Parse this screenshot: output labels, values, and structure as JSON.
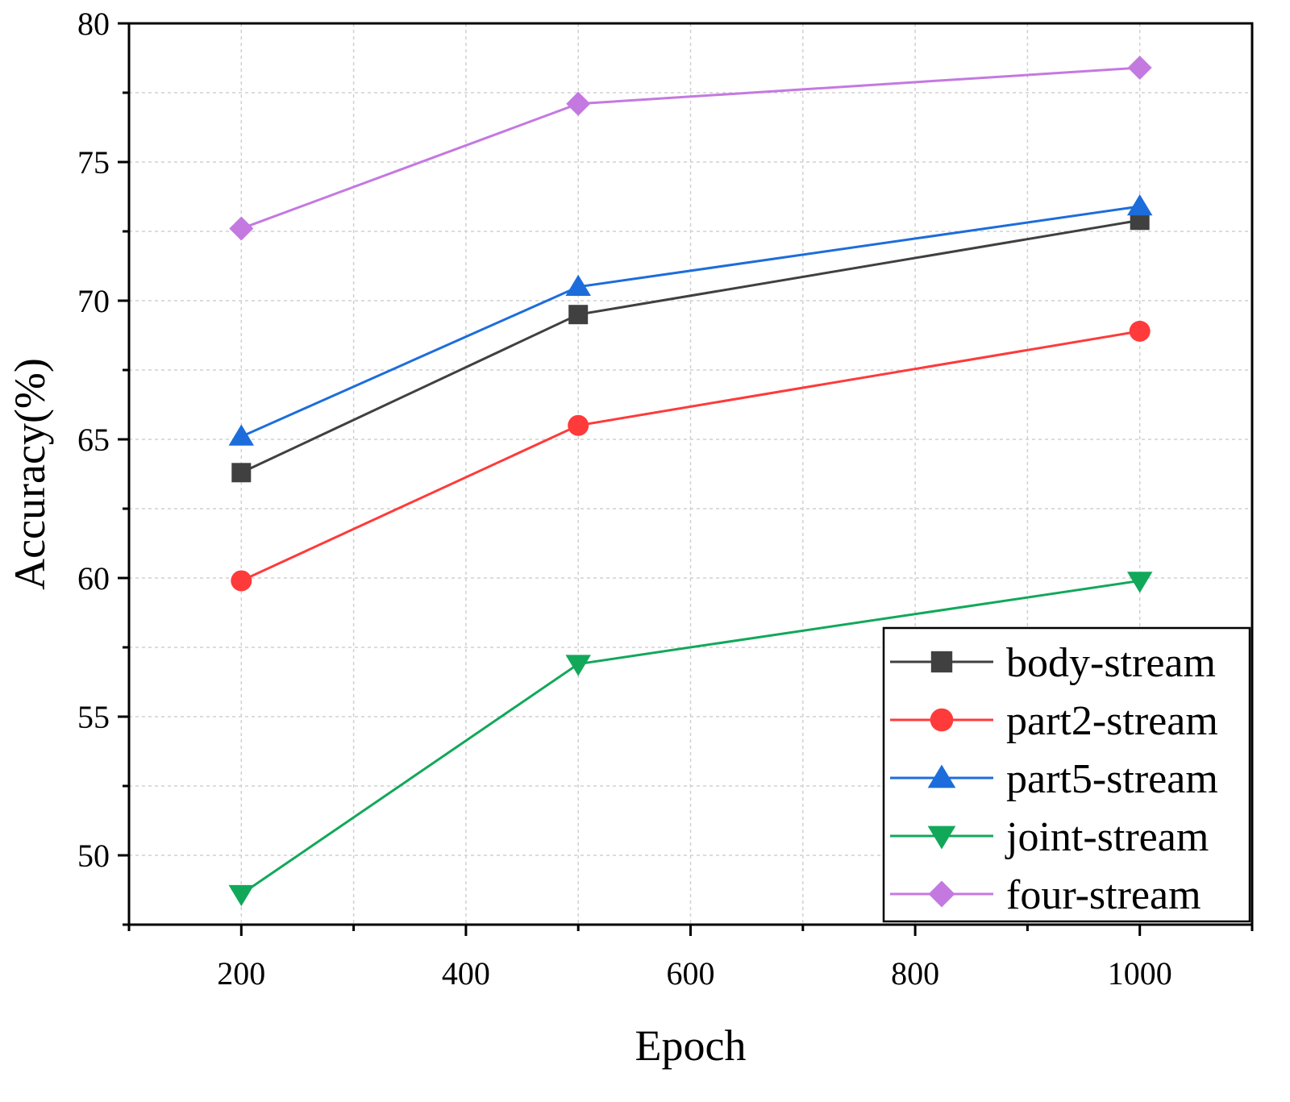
{
  "chart_data": {
    "type": "line",
    "title": "",
    "xlabel": "Epoch",
    "ylabel": "Accuracy(%)",
    "x": [
      200,
      500,
      1000
    ],
    "xlim": [
      100,
      1100
    ],
    "ylim": [
      47.5,
      80
    ],
    "xticks": [
      200,
      400,
      600,
      800,
      1000
    ],
    "yticks": [
      50,
      55,
      60,
      65,
      70,
      75,
      80
    ],
    "grid": true,
    "legend_position": "bottom-right",
    "series": [
      {
        "name": "body-stream",
        "values": [
          63.8,
          69.5,
          72.9
        ],
        "color": "#404040",
        "marker": "square"
      },
      {
        "name": "part2-stream",
        "values": [
          59.9,
          65.5,
          68.9
        ],
        "color": "#ff3a3a",
        "marker": "circle"
      },
      {
        "name": "part5-stream",
        "values": [
          65.1,
          70.5,
          73.4
        ],
        "color": "#1c6ddb",
        "marker": "triangle-up"
      },
      {
        "name": "joint-stream",
        "values": [
          48.6,
          56.9,
          59.9
        ],
        "color": "#12a85a",
        "marker": "triangle-down"
      },
      {
        "name": "four-stream",
        "values": [
          72.6,
          77.1,
          78.4
        ],
        "color": "#c479e0",
        "marker": "diamond"
      }
    ]
  }
}
